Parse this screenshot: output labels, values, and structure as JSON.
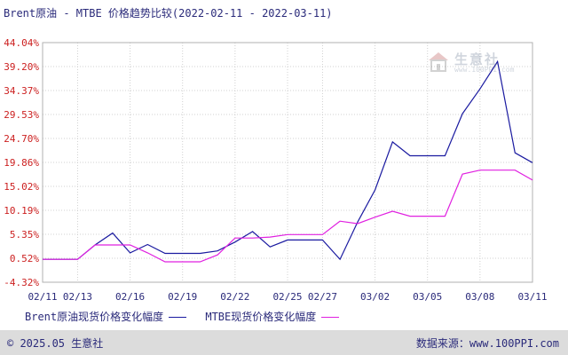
{
  "chart_data": {
    "type": "line",
    "title": "Brent原油 - MTBE 价格趋势比较(2022-02-11 - 2022-03-11)",
    "y_ticks": [
      "44.04%",
      "39.20%",
      "34.37%",
      "29.53%",
      "24.70%",
      "19.86%",
      "15.02%",
      "10.19%",
      "5.35%",
      "0.52%",
      "-4.32%"
    ],
    "ylim": [
      -4.32,
      44.04
    ],
    "x_ticks": [
      "02/11",
      "02/13",
      "02/16",
      "02/19",
      "02/22",
      "02/25",
      "02/27",
      "03/02",
      "03/05",
      "03/08",
      "03/11"
    ],
    "x": [
      "02/11",
      "02/12",
      "02/13",
      "02/14",
      "02/15",
      "02/16",
      "02/17",
      "02/18",
      "02/19",
      "02/20",
      "02/21",
      "02/22",
      "02/23",
      "02/24",
      "02/25",
      "02/26",
      "02/27",
      "02/28",
      "03/01",
      "03/02",
      "03/03",
      "03/04",
      "03/05",
      "03/06",
      "03/07",
      "03/08",
      "03/09",
      "03/10",
      "03/11"
    ],
    "series": [
      {
        "name": "Brent原油现货价格变化幅度",
        "color": "#1a1aa0",
        "values": [
          0.3,
          0.3,
          0.3,
          3.2,
          5.6,
          1.6,
          3.3,
          1.5,
          1.5,
          1.5,
          2.0,
          3.8,
          5.9,
          2.8,
          4.2,
          4.2,
          4.2,
          0.3,
          7.8,
          14.3,
          24.0,
          21.2,
          21.2,
          21.2,
          29.7,
          34.7,
          40.2,
          21.8,
          19.8
        ]
      },
      {
        "name": "MTBE现货价格变化幅度",
        "color": "#e020e0",
        "values": [
          0.3,
          0.3,
          0.3,
          3.2,
          3.2,
          3.2,
          1.6,
          -0.2,
          -0.2,
          -0.2,
          1.2,
          4.6,
          4.6,
          4.8,
          5.3,
          5.3,
          5.3,
          8.0,
          7.5,
          8.8,
          10.0,
          9.0,
          9.0,
          9.0,
          17.5,
          18.3,
          18.3,
          18.3,
          16.3
        ]
      }
    ],
    "grid": true,
    "legend": "bottom"
  },
  "watermark": {
    "name": "生意社",
    "url": "www.100PPI.com"
  },
  "footer": {
    "left": "© 2025.05 生意社",
    "right": "数据来源：www.100PPI.com"
  }
}
